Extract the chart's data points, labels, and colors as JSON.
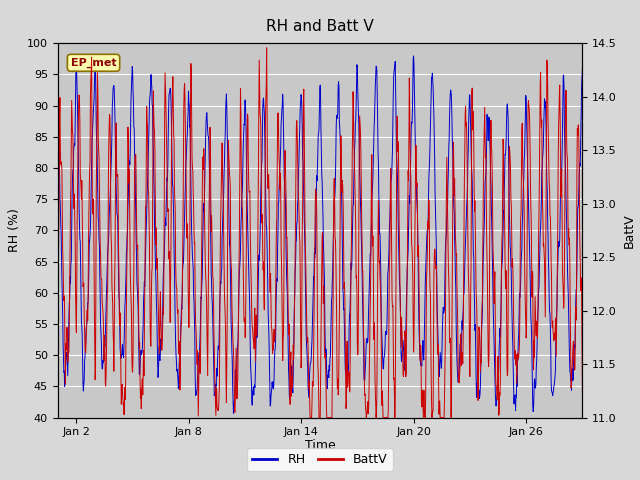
{
  "title": "RH and Batt V",
  "xlabel": "Time",
  "ylabel_left": "RH (%)",
  "ylabel_right": "BattV",
  "xlim": [
    0,
    28
  ],
  "ylim_left": [
    40,
    100
  ],
  "ylim_right": [
    11.0,
    14.5
  ],
  "xtick_labels": [
    "Jan 2",
    "Jan 8",
    "Jan 14",
    "Jan 20",
    "Jan 26"
  ],
  "xtick_positions": [
    1,
    7,
    13,
    19,
    25
  ],
  "yticks_left": [
    40,
    45,
    50,
    55,
    60,
    65,
    70,
    75,
    80,
    85,
    90,
    95,
    100
  ],
  "yticks_right": [
    11.0,
    11.5,
    12.0,
    12.5,
    13.0,
    13.5,
    14.0,
    14.5
  ],
  "rh_color": "#0000cc",
  "battv_color": "#cc0000",
  "fig_facecolor": "#d8d8d8",
  "plot_facecolor": "#c8c8c8",
  "annotation_text": "EP_met",
  "annotation_box_facecolor": "#ffffb0",
  "annotation_box_edgecolor": "#8b7000",
  "legend_labels": [
    "RH",
    "BattV"
  ],
  "title_fontsize": 11,
  "axis_label_fontsize": 9,
  "tick_fontsize": 8,
  "legend_fontsize": 9,
  "seed": 7
}
